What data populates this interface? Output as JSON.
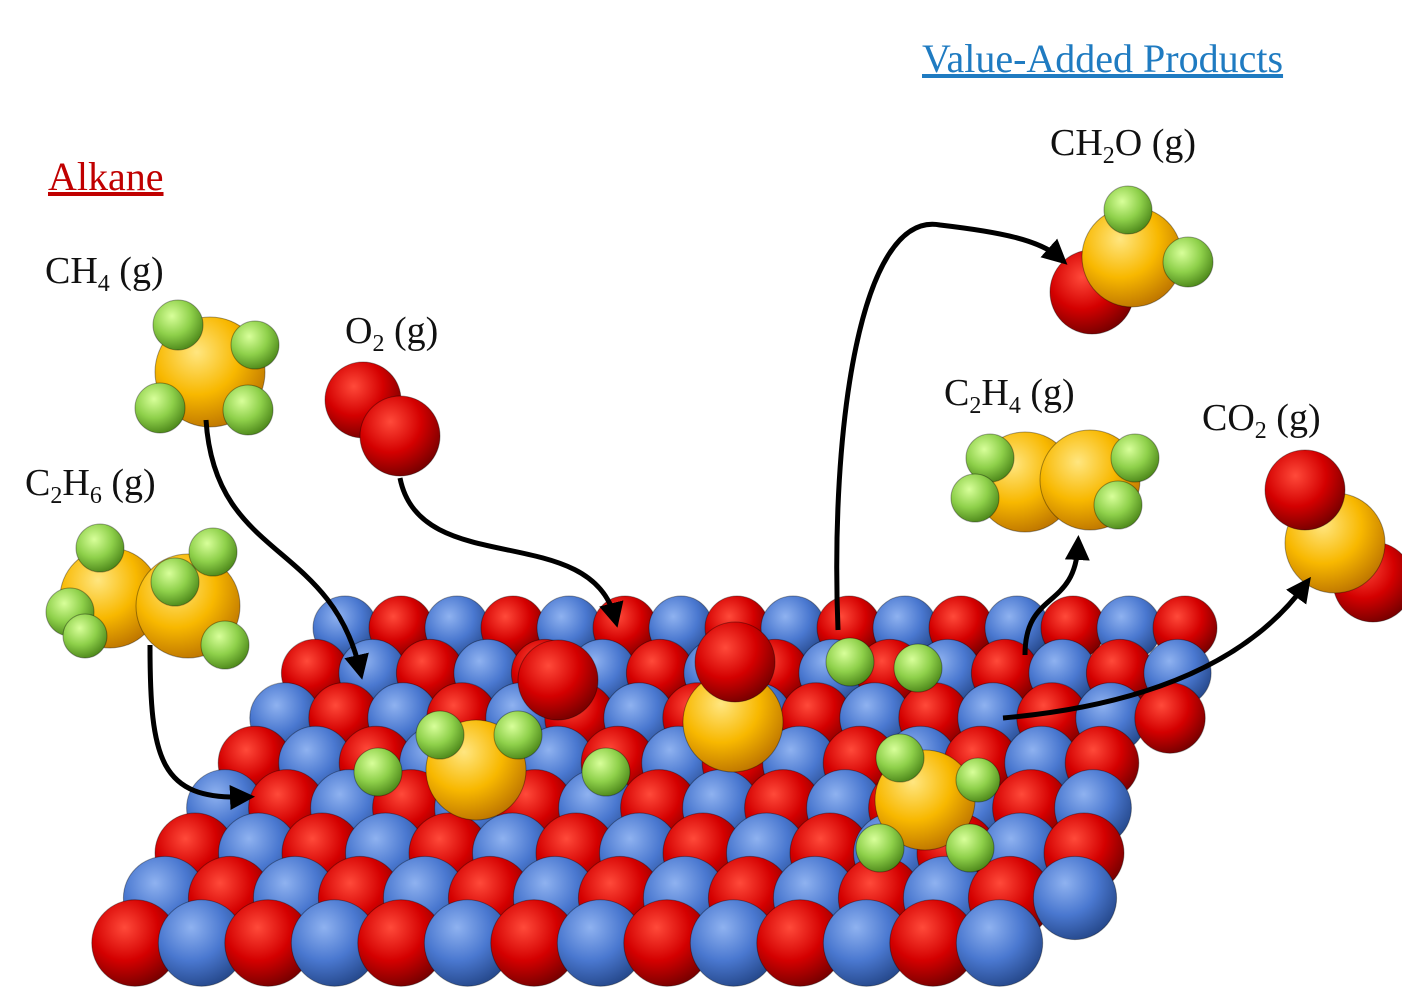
{
  "headings": {
    "alkane": "Alkane",
    "products": "Value-Added Products"
  },
  "labels": [
    {
      "parts": [
        "CH",
        "4",
        " (g)"
      ]
    },
    {
      "parts": [
        "C",
        "2",
        "H",
        "6",
        " (g)"
      ]
    },
    {
      "parts": [
        "O",
        "2",
        " (g)"
      ]
    },
    {
      "parts": [
        "CH",
        "2",
        "O (g)"
      ]
    },
    {
      "parts": [
        "C",
        "2",
        "H",
        "4",
        " (g)"
      ]
    },
    {
      "parts": [
        "CO",
        "2",
        " (g)"
      ]
    }
  ]
}
